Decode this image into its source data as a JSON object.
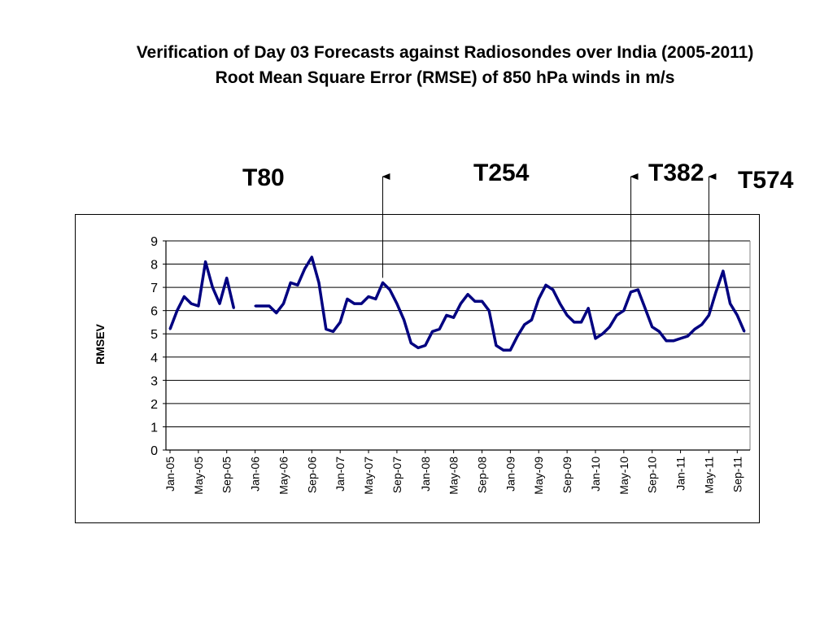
{
  "slide": {
    "title_line1": "Verification of Day 03 Forecasts against Radiosondes over India (2005-2011)",
    "title_line2": "Root Mean Square Error (RMSE) of 850 hPa winds in m/s"
  },
  "annotations": [
    {
      "label": "T80",
      "arrow": false
    },
    {
      "label": "T254",
      "arrow_at": "2007-07"
    },
    {
      "label": "T382",
      "arrow_at": "2010-06"
    },
    {
      "label": "T574",
      "arrow_at": "2011-05"
    }
  ],
  "chart_data": {
    "type": "line",
    "title": "",
    "xlabel": "",
    "ylabel": "RMSEV",
    "ylim": [
      0,
      9
    ],
    "yticks": [
      0,
      1,
      2,
      3,
      4,
      5,
      6,
      7,
      8,
      9
    ],
    "grid": true,
    "line_color": "#000080",
    "xtick_labels": [
      "Jan-05",
      "May-05",
      "Sep-05",
      "Jan-06",
      "May-06",
      "Sep-06",
      "Jan-07",
      "May-07",
      "Sep-07",
      "Jan-08",
      "May-08",
      "Sep-08",
      "Jan-09",
      "May-09",
      "Sep-09",
      "Jan-10",
      "May-10",
      "Sep-10",
      "Jan-11",
      "May-11",
      "Sep-11"
    ],
    "start_month": "Jan-05",
    "series": [
      {
        "values": [
          5.2,
          6.0,
          6.6,
          6.3,
          6.2,
          8.1,
          7.0,
          6.3,
          7.4,
          6.1,
          null,
          null,
          6.2,
          6.2,
          6.2,
          5.9,
          6.3,
          7.2,
          7.1,
          7.8,
          8.3,
          7.2,
          5.2,
          5.1,
          5.5,
          6.5,
          6.3,
          6.3,
          6.6,
          6.5,
          7.2,
          6.9,
          6.3,
          5.6,
          4.6,
          4.4,
          4.5,
          5.1,
          5.2,
          5.8,
          5.7,
          6.3,
          6.7,
          6.4,
          6.4,
          6.0,
          4.5,
          4.3,
          4.3,
          4.9,
          5.4,
          5.6,
          6.5,
          7.1,
          6.9,
          6.3,
          5.8,
          5.5,
          5.5,
          6.1,
          4.8,
          5.0,
          5.3,
          5.8,
          6.0,
          6.8,
          6.9,
          6.1,
          5.3,
          5.1,
          4.7,
          4.7,
          4.8,
          4.9,
          5.2,
          5.4,
          5.8,
          6.8,
          7.7,
          6.3,
          5.8,
          5.1
        ]
      }
    ]
  }
}
